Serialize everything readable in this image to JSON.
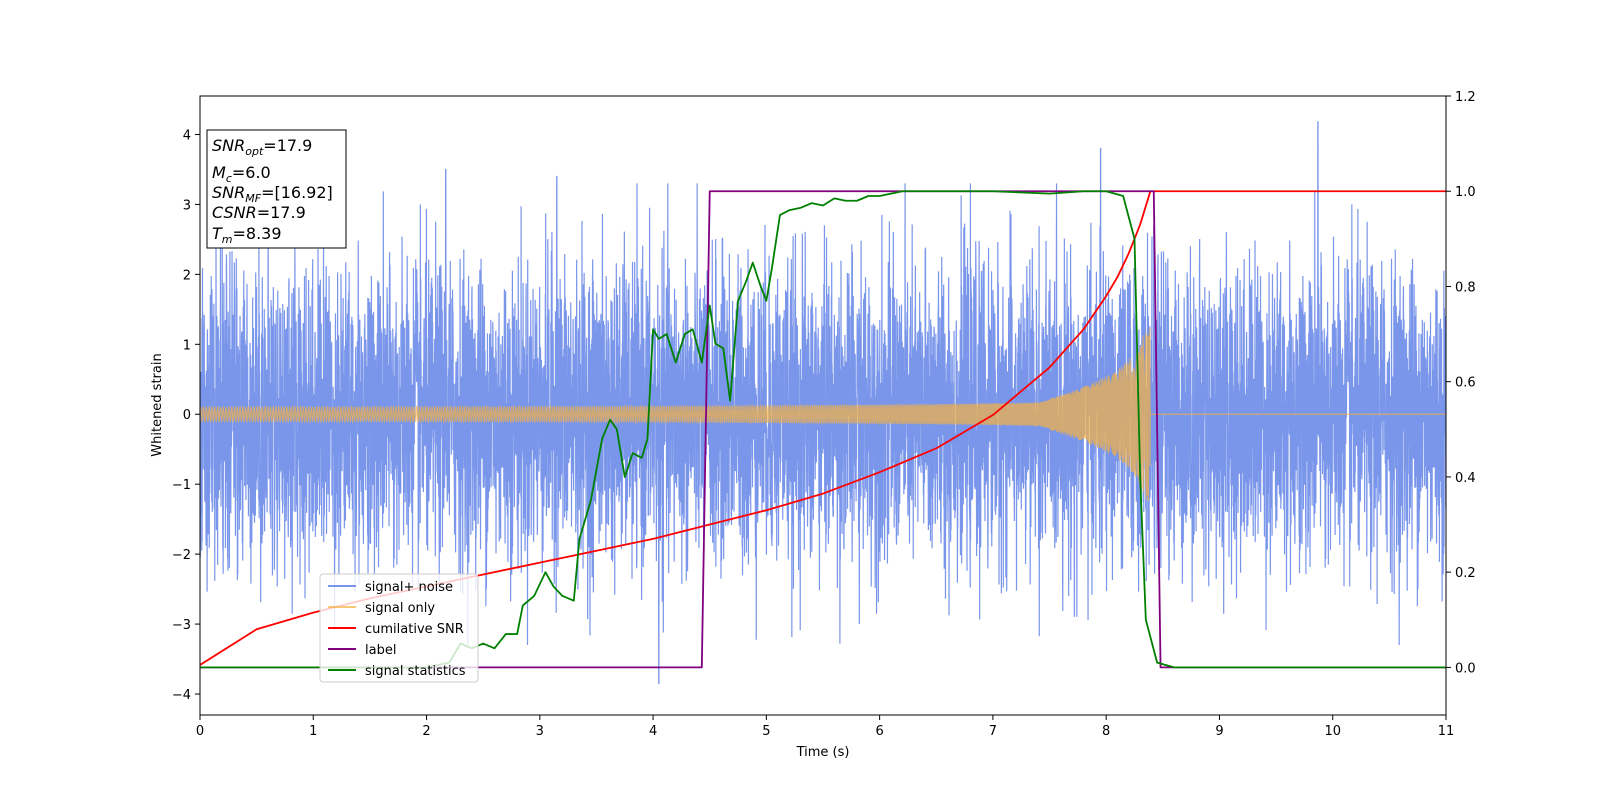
{
  "chart_data": {
    "type": "line",
    "xlabel": "Time (s)",
    "ylabel": "Whitened strain",
    "xlim": [
      0,
      11
    ],
    "ylim": [
      -4.3,
      4.55
    ],
    "y2lim": [
      -0.1,
      1.2
    ],
    "grid": false,
    "x_ticks": [
      "0",
      "1",
      "2",
      "3",
      "4",
      "5",
      "6",
      "7",
      "8",
      "9",
      "10",
      "11"
    ],
    "y_ticks": [
      "−4",
      "−3",
      "−2",
      "−1",
      "0",
      "1",
      "2",
      "3",
      "4"
    ],
    "y2_ticks": [
      "0.0",
      "0.2",
      "0.4",
      "0.6",
      "0.8",
      "1.0",
      "1.2"
    ],
    "legend_placement": "lower-left",
    "legend": [
      "signal+ noise",
      "signal only",
      "cumilative SNR",
      "label",
      "signal statistics"
    ],
    "series_colors": {
      "signal_noise": "#4169e1",
      "signal_only": "#f5b041",
      "cumulative_snr": "#ff0000",
      "label": "#800080",
      "signal_statistics": "#008000"
    },
    "info_box": {
      "snr_opt": {
        "base": "SNR",
        "sub": "opt",
        "value": "=17.9"
      },
      "mc": {
        "base": "M",
        "sub": "c",
        "value": "=6.0"
      },
      "snr_mf": {
        "base": "SNR",
        "sub": "MF",
        "value": "=[16.92]"
      },
      "csnr": {
        "base": "CSNR",
        "value": "=17.9"
      },
      "tm": {
        "base": "T",
        "sub": "m",
        "value": "=8.39"
      }
    },
    "signal_noise": {
      "axis": "left",
      "description_values": {
        "std": 1.05,
        "t_start": 0,
        "t_end": 11,
        "peaks": [
          [
            4.05,
            -3.85
          ],
          [
            7.95,
            3.8
          ],
          [
            9.87,
            4.18
          ],
          [
            2.17,
            3.5
          ],
          [
            3.15,
            3.4
          ]
        ]
      }
    },
    "signal_only": {
      "axis": "left",
      "merger_time": 8.39,
      "amplitude_start": 0.1,
      "amplitude_end": 1.35
    },
    "cumulative_snr": {
      "axis": "right",
      "x": [
        0,
        0.5,
        1,
        1.5,
        2,
        2.5,
        3,
        3.5,
        4,
        4.5,
        5,
        5.5,
        6,
        6.5,
        7,
        7.5,
        7.8,
        8.0,
        8.1,
        8.2,
        8.3,
        8.39,
        11
      ],
      "y": [
        0.005,
        0.08,
        0.115,
        0.145,
        0.17,
        0.195,
        0.22,
        0.245,
        0.27,
        0.3,
        0.33,
        0.365,
        0.41,
        0.46,
        0.53,
        0.63,
        0.71,
        0.78,
        0.82,
        0.87,
        0.93,
        1.0,
        1.0
      ]
    },
    "label": {
      "axis": "right",
      "x": [
        0,
        4.43,
        4.5,
        8.42,
        8.48,
        11
      ],
      "y": [
        0,
        0,
        1,
        1,
        0,
        0
      ]
    },
    "signal_statistics": {
      "axis": "right",
      "x": [
        0,
        0.5,
        1,
        1.5,
        2,
        2.2,
        2.3,
        2.4,
        2.5,
        2.6,
        2.7,
        2.8,
        2.85,
        2.95,
        3.05,
        3.12,
        3.2,
        3.3,
        3.35,
        3.45,
        3.55,
        3.62,
        3.68,
        3.75,
        3.82,
        3.9,
        3.95,
        4.0,
        4.05,
        4.12,
        4.2,
        4.28,
        4.35,
        4.43,
        4.5,
        4.55,
        4.62,
        4.68,
        4.75,
        4.82,
        4.88,
        4.95,
        5.0,
        5.05,
        5.12,
        5.2,
        5.3,
        5.4,
        5.5,
        5.6,
        5.7,
        5.8,
        5.9,
        6.0,
        6.2,
        6.5,
        7.0,
        7.5,
        7.8,
        8.0,
        8.15,
        8.25,
        8.3,
        8.35,
        8.45,
        8.6,
        9,
        11
      ],
      "y": [
        0.0,
        0.0,
        0.0,
        0.0,
        0.0,
        0.01,
        0.05,
        0.04,
        0.05,
        0.04,
        0.07,
        0.07,
        0.13,
        0.15,
        0.2,
        0.17,
        0.15,
        0.14,
        0.27,
        0.35,
        0.48,
        0.52,
        0.5,
        0.4,
        0.45,
        0.44,
        0.48,
        0.71,
        0.69,
        0.7,
        0.64,
        0.7,
        0.71,
        0.64,
        0.76,
        0.68,
        0.67,
        0.56,
        0.77,
        0.81,
        0.85,
        0.8,
        0.77,
        0.84,
        0.95,
        0.96,
        0.965,
        0.975,
        0.97,
        0.985,
        0.98,
        0.98,
        0.99,
        0.99,
        1.0,
        1.0,
        1.0,
        0.995,
        1.0,
        1.0,
        0.99,
        0.9,
        0.4,
        0.1,
        0.01,
        0.0,
        0.0,
        0.0
      ]
    }
  }
}
